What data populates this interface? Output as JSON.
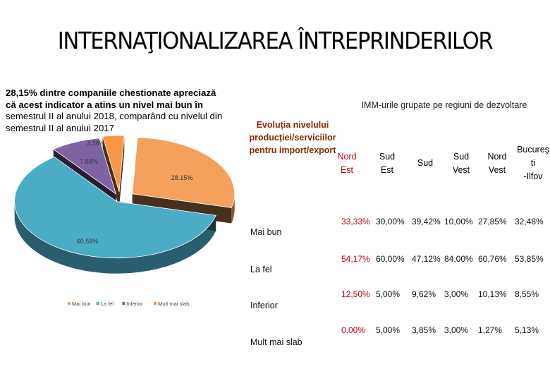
{
  "title": "INTERNAŢIONALIZAREA ÎNTREPRINDERILOR",
  "intro": {
    "line1": "28,15%  dintre companiile chestionate apreciază",
    "line2": "că acest indicator a atins un nivel mai bun în",
    "line3": "semestrul II al anului 2018, comparând cu nivelul din",
    "line4": "semestrul II al anului 2017"
  },
  "chart_data": {
    "type": "pie",
    "categories": [
      "Mai bun",
      "La fel",
      "Inferior",
      "Mult mai slab"
    ],
    "values": [
      28.15,
      60.59,
      7.88,
      3.38
    ],
    "data_labels": [
      "28.15%",
      "60.59%",
      "7.88%",
      "3.38%"
    ],
    "colors": [
      "#F4A15D",
      "#4BACC6",
      "#8064A2",
      "#F79646"
    ],
    "legend_position": "bottom"
  },
  "table": {
    "title": "IMM-urile grupate pe regiuni de dezvoltare",
    "header_label": "Evoluția nivelului producției/serviciilor pentru import/export",
    "columns": [
      {
        "lines": [
          "Nord",
          "Est"
        ],
        "red": true
      },
      {
        "lines": [
          "Sud",
          "Est"
        ],
        "red": false
      },
      {
        "lines": [
          "Sud"
        ],
        "red": false
      },
      {
        "lines": [
          "Sud",
          "Vest"
        ],
        "red": false
      },
      {
        "lines": [
          "Nord",
          "Vest"
        ],
        "red": false
      },
      {
        "lines": [
          "Bucureş",
          "ti",
          "-Ilfov"
        ],
        "red": false
      }
    ],
    "rows": [
      {
        "label": "Mai bun",
        "values": [
          "33,33%",
          "30,00%",
          "39,42%",
          "10,00%",
          "27,85%",
          "32,48%"
        ]
      },
      {
        "label": "La fel",
        "values": [
          "54,17%",
          "60,00%",
          "47,12%",
          "84,00%",
          "60,76%",
          "53,85%"
        ]
      },
      {
        "label": "Inferior",
        "values": [
          "12,50%",
          "5,00%",
          "9,62%",
          "3,00%",
          "10,13%",
          "8,55%"
        ]
      },
      {
        "label": "Mult mai slab",
        "values": [
          "0,00%",
          "5,00%",
          "3,85%",
          "3,00%",
          "1,27%",
          "5,13%"
        ]
      }
    ]
  }
}
